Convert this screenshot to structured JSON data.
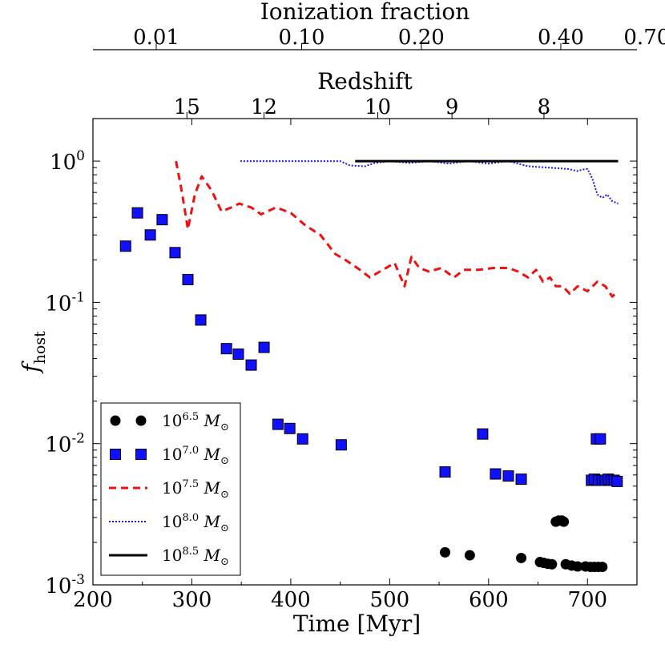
{
  "chart_data": {
    "type": "scatter",
    "ylabel": "f",
    "ylabel_sub": "host",
    "xlabel": "Time [Myr]",
    "xlim": [
      200,
      750
    ],
    "ylim": [
      0.001,
      2
    ],
    "yscale": "log",
    "xticks": [
      200,
      300,
      400,
      500,
      600,
      700
    ],
    "xtick_labels": [
      "200",
      "300",
      "400",
      "500",
      "600",
      "700"
    ],
    "yticks": [
      {
        "value": 1,
        "base": "10",
        "exp": "0"
      },
      {
        "value": 0.1,
        "base": "10",
        "exp": "-1"
      },
      {
        "value": 0.01,
        "base": "10",
        "exp": "-2"
      },
      {
        "value": 0.001,
        "base": "10",
        "exp": "-3"
      }
    ],
    "top_axes": [
      {
        "title": "Redshift",
        "ticks": [
          {
            "label": "15",
            "time": 295
          },
          {
            "label": "12",
            "time": 373
          },
          {
            "label": "10",
            "time": 488
          },
          {
            "label": "9",
            "time": 563
          },
          {
            "label": "8",
            "time": 656
          }
        ]
      },
      {
        "title": "Ionization fraction",
        "ticks": [
          {
            "label": "0.01",
            "time": 264
          },
          {
            "label": "0.10",
            "time": 411
          },
          {
            "label": "0.20",
            "time": 532
          },
          {
            "label": "0.40",
            "time": 673
          },
          {
            "label": "0.70",
            "time": 760
          }
        ]
      }
    ],
    "series": [
      {
        "name": "10^6.5 M☉",
        "mass_base": "10",
        "mass_exp": "6.5",
        "marker": "circle",
        "color": "#000000",
        "points": [
          [
            556,
            0.0017
          ],
          [
            581,
            0.00162
          ],
          [
            633,
            0.00155
          ],
          [
            652,
            0.00145
          ],
          [
            656,
            0.00143
          ],
          [
            660,
            0.00141
          ],
          [
            664,
            0.0014
          ],
          [
            668,
            0.0028
          ],
          [
            671,
            0.00285
          ],
          [
            674,
            0.00285
          ],
          [
            676,
            0.0028
          ],
          [
            678,
            0.0014
          ],
          [
            684,
            0.00137
          ],
          [
            690,
            0.00135
          ],
          [
            698,
            0.00135
          ],
          [
            703,
            0.00134
          ],
          [
            707,
            0.00134
          ],
          [
            711,
            0.00134
          ],
          [
            715,
            0.00134
          ]
        ]
      },
      {
        "name": "10^7.0 M☉",
        "mass_base": "10",
        "mass_exp": "7.0",
        "marker": "square",
        "color": "#1010ff",
        "points": [
          [
            233,
            0.25
          ],
          [
            245,
            0.43
          ],
          [
            258,
            0.3
          ],
          [
            270,
            0.385
          ],
          [
            283,
            0.225
          ],
          [
            296,
            0.145
          ],
          [
            309,
            0.075
          ],
          [
            335,
            0.047
          ],
          [
            347,
            0.043
          ],
          [
            360,
            0.036
          ],
          [
            373,
            0.048
          ],
          [
            387,
            0.0137
          ],
          [
            399,
            0.0128
          ],
          [
            412,
            0.0108
          ],
          [
            451,
            0.0098
          ],
          [
            556,
            0.0063
          ],
          [
            594,
            0.0117
          ],
          [
            607,
            0.0061
          ],
          [
            620,
            0.0059
          ],
          [
            633,
            0.0056
          ],
          [
            704,
            0.0055
          ],
          [
            707,
            0.0056
          ],
          [
            709,
            0.0108
          ],
          [
            711,
            0.0055
          ],
          [
            713,
            0.0108
          ],
          [
            715,
            0.0055
          ],
          [
            718,
            0.0055
          ],
          [
            721,
            0.0056
          ],
          [
            724,
            0.0055
          ],
          [
            727,
            0.0055
          ],
          [
            730,
            0.0054
          ]
        ]
      },
      {
        "name": "10^7.5 M☉",
        "mass_base": "10",
        "mass_exp": "7.5",
        "style": "dashed",
        "color": "#ee1111",
        "points": [
          [
            284,
            1.0
          ],
          [
            290,
            0.6
          ],
          [
            296,
            0.33
          ],
          [
            303,
            0.58
          ],
          [
            310,
            0.78
          ],
          [
            320,
            0.62
          ],
          [
            330,
            0.44
          ],
          [
            340,
            0.47
          ],
          [
            348,
            0.5
          ],
          [
            360,
            0.47
          ],
          [
            370,
            0.42
          ],
          [
            385,
            0.47
          ],
          [
            400,
            0.43
          ],
          [
            415,
            0.35
          ],
          [
            430,
            0.3
          ],
          [
            445,
            0.22
          ],
          [
            455,
            0.2
          ],
          [
            470,
            0.17
          ],
          [
            480,
            0.15
          ],
          [
            490,
            0.165
          ],
          [
            505,
            0.19
          ],
          [
            515,
            0.13
          ],
          [
            522,
            0.21
          ],
          [
            530,
            0.175
          ],
          [
            540,
            0.165
          ],
          [
            552,
            0.175
          ],
          [
            565,
            0.15
          ],
          [
            575,
            0.17
          ],
          [
            590,
            0.17
          ],
          [
            605,
            0.175
          ],
          [
            620,
            0.175
          ],
          [
            630,
            0.165
          ],
          [
            640,
            0.15
          ],
          [
            648,
            0.17
          ],
          [
            655,
            0.14
          ],
          [
            662,
            0.15
          ],
          [
            668,
            0.13
          ],
          [
            675,
            0.13
          ],
          [
            682,
            0.115
          ],
          [
            690,
            0.13
          ],
          [
            700,
            0.12
          ],
          [
            710,
            0.14
          ],
          [
            718,
            0.13
          ],
          [
            725,
            0.11
          ],
          [
            731,
            0.12
          ]
        ]
      },
      {
        "name": "10^8.0 M☉",
        "mass_base": "10",
        "mass_exp": "8.0",
        "style": "dotted",
        "color": "#1a1aee",
        "points": [
          [
            349,
            1.0
          ],
          [
            450,
            1.0
          ],
          [
            460,
            0.93
          ],
          [
            475,
            0.92
          ],
          [
            485,
            0.97
          ],
          [
            500,
            1.0
          ],
          [
            520,
            0.97
          ],
          [
            540,
            1.0
          ],
          [
            560,
            0.96
          ],
          [
            580,
            1.0
          ],
          [
            600,
            0.96
          ],
          [
            620,
            1.0
          ],
          [
            640,
            0.92
          ],
          [
            660,
            0.9
          ],
          [
            680,
            0.88
          ],
          [
            690,
            0.85
          ],
          [
            695,
            0.87
          ],
          [
            700,
            0.88
          ],
          [
            705,
            0.75
          ],
          [
            710,
            0.58
          ],
          [
            715,
            0.55
          ],
          [
            720,
            0.58
          ],
          [
            725,
            0.52
          ],
          [
            731,
            0.5
          ]
        ]
      },
      {
        "name": "10^8.5 M☉",
        "mass_base": "10",
        "mass_exp": "8.5",
        "style": "solid",
        "color": "#000000",
        "points": [
          [
            465,
            1.0
          ],
          [
            731,
            1.0
          ]
        ]
      }
    ]
  }
}
